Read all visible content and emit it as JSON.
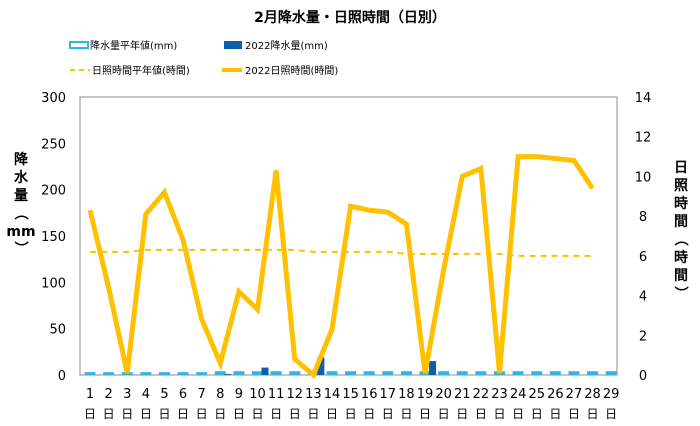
{
  "chart_data": {
    "type": "bar",
    "title": "2月降水量・日照時間（日別）",
    "ylabel_left": [
      "降",
      "水",
      "量",
      "（",
      "mm",
      "）"
    ],
    "ylabel_right": [
      "日",
      "照",
      "時",
      "間",
      "（",
      "時",
      "間",
      "）"
    ],
    "categories": [
      "1",
      "2",
      "3",
      "4",
      "5",
      "6",
      "7",
      "8",
      "9",
      "10",
      "11",
      "12",
      "13",
      "14",
      "15",
      "16",
      "17",
      "18",
      "19",
      "20",
      "21",
      "22",
      "23",
      "24",
      "25",
      "26",
      "27",
      "28",
      "29"
    ],
    "day_suffix": "日",
    "ylim_left": [
      0,
      300
    ],
    "yticks_left": [
      0,
      50,
      100,
      150,
      200,
      250,
      300
    ],
    "ylim_right": [
      0,
      14
    ],
    "yticks_right": [
      0,
      2,
      4,
      6,
      8,
      10,
      12,
      14
    ],
    "legend": {
      "precip_normal": "降水量平年値(mm)",
      "precip_2022": "2022降水量(mm)",
      "sun_normal": "日照時間平年値(時間)",
      "sun_2022": "2022日照時間(時間)"
    },
    "series": [
      {
        "name": "降水量平年値(mm)",
        "axis": "left",
        "kind": "bar-outline",
        "color": "#33b4e8",
        "values": [
          2,
          2,
          2,
          2,
          2,
          2,
          2,
          3,
          3,
          3,
          3,
          3,
          3,
          3,
          3,
          3,
          3,
          3,
          3,
          3,
          3,
          3,
          3,
          3,
          3,
          3,
          3,
          3,
          3
        ]
      },
      {
        "name": "2022降水量(mm)",
        "axis": "left",
        "kind": "bar",
        "color": "#0e5fa8",
        "values": [
          0,
          0,
          0,
          0,
          0,
          0,
          0,
          1,
          0,
          8,
          0,
          0,
          19,
          0,
          0,
          0,
          0,
          0,
          15,
          0,
          0,
          0,
          0,
          0,
          0,
          0,
          0,
          0,
          null
        ]
      },
      {
        "name": "日照時間平年値(時間)",
        "axis": "right",
        "kind": "dashed-line",
        "color": "#ffc000",
        "values": [
          6.2,
          6.2,
          6.2,
          6.3,
          6.3,
          6.3,
          6.3,
          6.3,
          6.3,
          6.3,
          6.3,
          6.3,
          6.2,
          6.2,
          6.2,
          6.2,
          6.2,
          6.1,
          6.1,
          6.1,
          6.1,
          6.1,
          6.1,
          6.0,
          6.0,
          6.0,
          6.0,
          6.0,
          null
        ]
      },
      {
        "name": "2022日照時間(時間)",
        "axis": "right",
        "kind": "line",
        "color": "#ffc000",
        "values": [
          8.3,
          4.4,
          0.1,
          8.1,
          9.2,
          6.8,
          2.8,
          0.6,
          4.2,
          3.3,
          10.3,
          0.8,
          0.0,
          2.3,
          8.5,
          8.3,
          8.2,
          7.6,
          0.1,
          5.3,
          10.0,
          10.4,
          0.1,
          11.0,
          11.0,
          10.9,
          10.8,
          9.4,
          null
        ]
      }
    ],
    "grid": false,
    "legend_position": "top"
  }
}
